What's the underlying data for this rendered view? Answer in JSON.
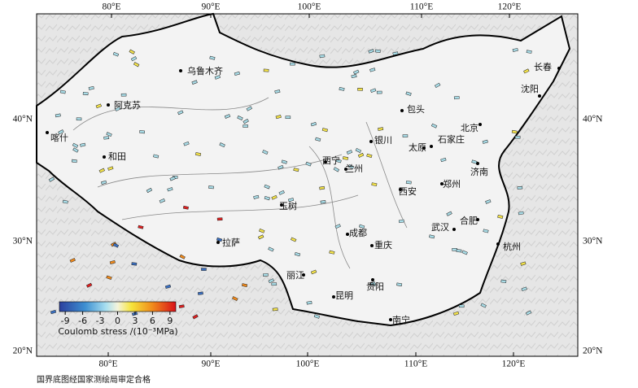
{
  "map": {
    "lon_labels": [
      "80°E",
      "90°E",
      "100°E",
      "110°E",
      "120°E"
    ],
    "lat_labels": [
      "40°N",
      "30°N",
      "20°N"
    ],
    "cities": [
      "乌鲁木齐",
      "阿克苏",
      "喀什",
      "和田",
      "长春",
      "沈阳",
      "包头",
      "北京",
      "石家庄",
      "太原",
      "银川",
      "兰州",
      "西宁",
      "济南",
      "郑州",
      "西安",
      "玉树",
      "拉萨",
      "成都",
      "重庆",
      "武汉",
      "合肥",
      "杭州",
      "丽江",
      "贵阳",
      "昆明",
      "南宁"
    ],
    "colorbar": {
      "ticks": [
        -9,
        -6,
        -3,
        0,
        3,
        6,
        9
      ],
      "lim": [
        -10,
        10
      ],
      "label": "Coulomb stress /(10⁻³MPa)"
    },
    "footer": "国界底图经国家测绘局审定合格"
  }
}
